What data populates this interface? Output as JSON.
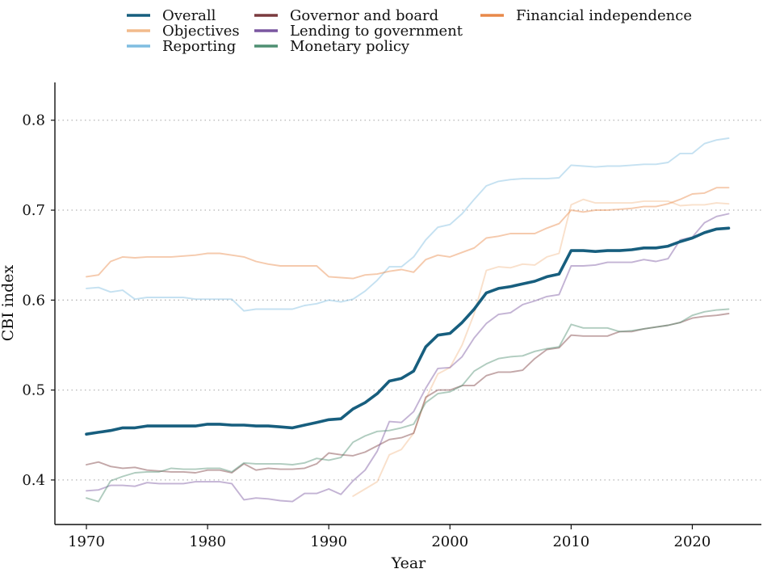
{
  "chart_data": {
    "type": "line",
    "title": "",
    "xlabel": "Year",
    "ylabel": "CBI index",
    "xlim": [
      1967.4,
      2025.7
    ],
    "ylim": [
      0.3505,
      0.842
    ],
    "xticks": [
      1970,
      1980,
      1990,
      2000,
      2010,
      2020
    ],
    "yticks": [
      0.4,
      0.5,
      0.6,
      0.7,
      0.8
    ],
    "ytick_labels": [
      "0.4",
      "0.5",
      "0.6",
      "0.7",
      "0.8"
    ],
    "grid": "horizontal dotted",
    "legend_position": "top",
    "series": [
      {
        "name": "Overall",
        "color": "#175e7e",
        "emphasis": true,
        "x": [
          1970,
          1971,
          1972,
          1973,
          1974,
          1975,
          1976,
          1977,
          1978,
          1979,
          1980,
          1981,
          1982,
          1983,
          1984,
          1985,
          1986,
          1987,
          1988,
          1989,
          1990,
          1991,
          1992,
          1993,
          1994,
          1995,
          1996,
          1997,
          1998,
          1999,
          2000,
          2001,
          2002,
          2003,
          2004,
          2005,
          2006,
          2007,
          2008,
          2009,
          2010,
          2011,
          2012,
          2013,
          2014,
          2015,
          2016,
          2017,
          2018,
          2019,
          2020,
          2021,
          2022,
          2023
        ],
        "values": [
          0.451,
          0.453,
          0.455,
          0.458,
          0.458,
          0.46,
          0.46,
          0.46,
          0.46,
          0.46,
          0.462,
          0.462,
          0.461,
          0.461,
          0.46,
          0.46,
          0.459,
          0.458,
          0.461,
          0.464,
          0.467,
          0.468,
          0.479,
          0.486,
          0.496,
          0.51,
          0.513,
          0.521,
          0.548,
          0.561,
          0.563,
          0.575,
          0.59,
          0.608,
          0.613,
          0.615,
          0.618,
          0.621,
          0.626,
          0.629,
          0.655,
          0.655,
          0.654,
          0.655,
          0.655,
          0.656,
          0.658,
          0.658,
          0.66,
          0.665,
          0.669,
          0.675,
          0.679,
          0.68
        ]
      },
      {
        "name": "Objectives",
        "color": "#f2bb8c",
        "x": [
          1992,
          1993,
          1994,
          1995,
          1996,
          1997,
          1998,
          1999,
          2000,
          2001,
          2002,
          2003,
          2004,
          2005,
          2006,
          2007,
          2008,
          2009,
          2010,
          2011,
          2012,
          2013,
          2014,
          2015,
          2016,
          2017,
          2018,
          2019,
          2020,
          2021,
          2022,
          2023
        ],
        "values": [
          0.382,
          0.39,
          0.398,
          0.428,
          0.434,
          0.452,
          0.49,
          0.518,
          0.525,
          0.55,
          0.585,
          0.633,
          0.637,
          0.636,
          0.64,
          0.639,
          0.648,
          0.652,
          0.706,
          0.712,
          0.708,
          0.708,
          0.708,
          0.708,
          0.71,
          0.71,
          0.71,
          0.705,
          0.706,
          0.706,
          0.708,
          0.707
        ]
      },
      {
        "name": "Reporting",
        "color": "#7fbde0",
        "x": [
          1970,
          1971,
          1972,
          1973,
          1974,
          1975,
          1976,
          1977,
          1978,
          1979,
          1980,
          1981,
          1982,
          1983,
          1984,
          1985,
          1986,
          1987,
          1988,
          1989,
          1990,
          1991,
          1992,
          1993,
          1994,
          1995,
          1996,
          1997,
          1998,
          1999,
          2000,
          2001,
          2002,
          2003,
          2004,
          2005,
          2006,
          2007,
          2008,
          2009,
          2010,
          2011,
          2012,
          2013,
          2014,
          2015,
          2016,
          2017,
          2018,
          2019,
          2020,
          2021,
          2022,
          2023
        ],
        "values": [
          0.613,
          0.614,
          0.609,
          0.611,
          0.601,
          0.603,
          0.603,
          0.603,
          0.603,
          0.601,
          0.601,
          0.601,
          0.601,
          0.588,
          0.59,
          0.59,
          0.59,
          0.59,
          0.594,
          0.596,
          0.6,
          0.598,
          0.601,
          0.61,
          0.622,
          0.637,
          0.637,
          0.648,
          0.667,
          0.681,
          0.684,
          0.696,
          0.712,
          0.727,
          0.732,
          0.734,
          0.735,
          0.735,
          0.735,
          0.736,
          0.75,
          0.749,
          0.748,
          0.749,
          0.749,
          0.75,
          0.751,
          0.751,
          0.753,
          0.763,
          0.763,
          0.774,
          0.778,
          0.78
        ]
      },
      {
        "name": "Governor and board",
        "color": "#7a3b3f",
        "x": [
          1970,
          1971,
          1972,
          1973,
          1974,
          1975,
          1976,
          1977,
          1978,
          1979,
          1980,
          1981,
          1982,
          1983,
          1984,
          1985,
          1986,
          1987,
          1988,
          1989,
          1990,
          1991,
          1992,
          1993,
          1994,
          1995,
          1996,
          1997,
          1998,
          1999,
          2000,
          2001,
          2002,
          2003,
          2004,
          2005,
          2006,
          2007,
          2008,
          2009,
          2010,
          2011,
          2012,
          2013,
          2014,
          2015,
          2016,
          2017,
          2018,
          2019,
          2020,
          2021,
          2022,
          2023
        ],
        "values": [
          0.417,
          0.42,
          0.415,
          0.413,
          0.414,
          0.411,
          0.41,
          0.409,
          0.409,
          0.408,
          0.411,
          0.411,
          0.408,
          0.418,
          0.411,
          0.413,
          0.412,
          0.412,
          0.413,
          0.418,
          0.43,
          0.428,
          0.427,
          0.431,
          0.438,
          0.445,
          0.447,
          0.452,
          0.492,
          0.5,
          0.5,
          0.505,
          0.505,
          0.516,
          0.52,
          0.52,
          0.522,
          0.535,
          0.545,
          0.547,
          0.561,
          0.56,
          0.56,
          0.56,
          0.565,
          0.565,
          0.568,
          0.57,
          0.572,
          0.575,
          0.58,
          0.582,
          0.583,
          0.585
        ]
      },
      {
        "name": "Lending to government",
        "color": "#7a56a0",
        "x": [
          1970,
          1971,
          1972,
          1973,
          1974,
          1975,
          1976,
          1977,
          1978,
          1979,
          1980,
          1981,
          1982,
          1983,
          1984,
          1985,
          1986,
          1987,
          1988,
          1989,
          1990,
          1991,
          1992,
          1993,
          1994,
          1995,
          1996,
          1997,
          1998,
          1999,
          2000,
          2001,
          2002,
          2003,
          2004,
          2005,
          2006,
          2007,
          2008,
          2009,
          2010,
          2011,
          2012,
          2013,
          2014,
          2015,
          2016,
          2017,
          2018,
          2019,
          2020,
          2021,
          2022,
          2023
        ],
        "values": [
          0.388,
          0.389,
          0.394,
          0.394,
          0.393,
          0.397,
          0.396,
          0.396,
          0.396,
          0.398,
          0.398,
          0.398,
          0.396,
          0.378,
          0.38,
          0.379,
          0.377,
          0.376,
          0.385,
          0.385,
          0.39,
          0.384,
          0.399,
          0.411,
          0.432,
          0.465,
          0.464,
          0.476,
          0.502,
          0.524,
          0.525,
          0.537,
          0.558,
          0.574,
          0.584,
          0.586,
          0.595,
          0.599,
          0.604,
          0.606,
          0.638,
          0.638,
          0.639,
          0.642,
          0.642,
          0.642,
          0.645,
          0.643,
          0.646,
          0.667,
          0.67,
          0.686,
          0.693,
          0.696
        ]
      },
      {
        "name": "Monetary policy",
        "color": "#4f8f72",
        "x": [
          1970,
          1971,
          1972,
          1973,
          1974,
          1975,
          1976,
          1977,
          1978,
          1979,
          1980,
          1981,
          1982,
          1983,
          1984,
          1985,
          1986,
          1987,
          1988,
          1989,
          1990,
          1991,
          1992,
          1993,
          1994,
          1995,
          1996,
          1997,
          1998,
          1999,
          2000,
          2001,
          2002,
          2003,
          2004,
          2005,
          2006,
          2007,
          2008,
          2009,
          2010,
          2011,
          2012,
          2013,
          2014,
          2015,
          2016,
          2017,
          2018,
          2019,
          2020,
          2021,
          2022,
          2023
        ],
        "values": [
          0.38,
          0.376,
          0.399,
          0.404,
          0.408,
          0.409,
          0.409,
          0.413,
          0.412,
          0.412,
          0.413,
          0.413,
          0.409,
          0.419,
          0.418,
          0.418,
          0.418,
          0.417,
          0.419,
          0.424,
          0.422,
          0.425,
          0.442,
          0.449,
          0.454,
          0.455,
          0.458,
          0.462,
          0.486,
          0.496,
          0.498,
          0.505,
          0.521,
          0.529,
          0.535,
          0.537,
          0.538,
          0.543,
          0.546,
          0.548,
          0.573,
          0.569,
          0.569,
          0.569,
          0.565,
          0.566,
          0.568,
          0.57,
          0.572,
          0.575,
          0.583,
          0.587,
          0.589,
          0.59
        ]
      },
      {
        "name": "Financial independence",
        "color": "#e8894a",
        "x": [
          1970,
          1971,
          1972,
          1973,
          1974,
          1975,
          1976,
          1977,
          1978,
          1979,
          1980,
          1981,
          1982,
          1983,
          1984,
          1985,
          1986,
          1987,
          1988,
          1989,
          1990,
          1991,
          1992,
          1993,
          1994,
          1995,
          1996,
          1997,
          1998,
          1999,
          2000,
          2001,
          2002,
          2003,
          2004,
          2005,
          2006,
          2007,
          2008,
          2009,
          2010,
          2011,
          2012,
          2013,
          2014,
          2015,
          2016,
          2017,
          2018,
          2019,
          2020,
          2021,
          2022,
          2023
        ],
        "values": [
          0.626,
          0.628,
          0.643,
          0.648,
          0.647,
          0.648,
          0.648,
          0.648,
          0.649,
          0.65,
          0.652,
          0.652,
          0.65,
          0.648,
          0.643,
          0.64,
          0.638,
          0.638,
          0.638,
          0.638,
          0.626,
          0.625,
          0.624,
          0.628,
          0.629,
          0.632,
          0.634,
          0.631,
          0.645,
          0.65,
          0.648,
          0.653,
          0.658,
          0.669,
          0.671,
          0.674,
          0.674,
          0.674,
          0.68,
          0.685,
          0.7,
          0.698,
          0.7,
          0.7,
          0.701,
          0.702,
          0.704,
          0.704,
          0.707,
          0.712,
          0.718,
          0.719,
          0.725,
          0.725
        ]
      }
    ]
  }
}
